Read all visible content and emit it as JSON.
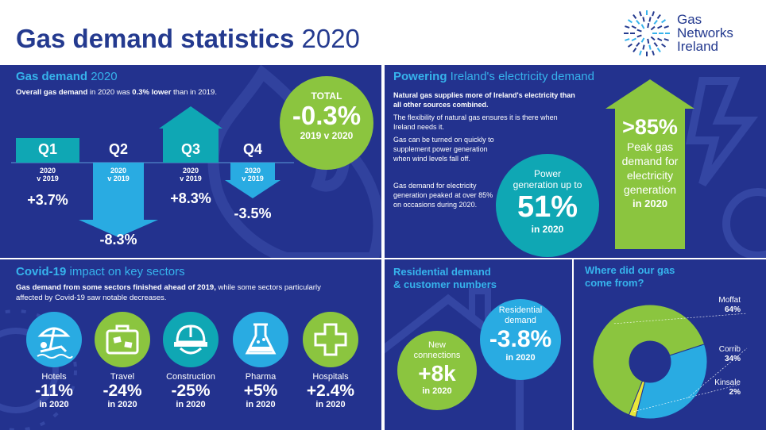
{
  "header": {
    "title_bold": "Gas demand statistics",
    "title_year": "2020",
    "logo": {
      "line1": "Gas",
      "line2": "Networks",
      "line3": "Ireland",
      "icon": "ring-logo-icon"
    }
  },
  "colors": {
    "navy": "#23328e",
    "cyan": "#36b3ec",
    "teal": "#0fa7b4",
    "green": "#8bc53f",
    "light_blue": "#29abe2",
    "yellow": "#e9e63a"
  },
  "demand": {
    "title_bold": "Gas demand",
    "title_year": "2020",
    "lead_a": "Overall gas demand",
    "lead_b": " in 2020 was ",
    "lead_c": "0.3% lower",
    "lead_d": " than in 2019.",
    "total": {
      "label": "TOTAL",
      "value": "-0.3%",
      "sub": "2019 v 2020"
    },
    "quarters": [
      {
        "label": "Q1",
        "sub1": "2020",
        "sub2": "v 2019",
        "value": "+3.7%",
        "direction": "up"
      },
      {
        "label": "Q2",
        "sub1": "2020",
        "sub2": "v 2019",
        "value": "-8.3%",
        "direction": "down"
      },
      {
        "label": "Q3",
        "sub1": "2020",
        "sub2": "v 2019",
        "value": "+8.3%",
        "direction": "up"
      },
      {
        "label": "Q4",
        "sub1": "2020",
        "sub2": "v 2019",
        "value": "-3.5%",
        "direction": "down"
      }
    ]
  },
  "power": {
    "title_bold": "Powering",
    "title_rest": " Ireland's electricity demand",
    "p1": "Natural gas supplies more of Ireland's electricity than all other sources combined.",
    "p2": "The flexibility of natural gas ensures it is there when Ireland needs it.",
    "p3": "Gas can be turned on quickly to supplement power generation when wind levels fall off.",
    "p4": "Gas demand for electricity generation peaked at over 85% on occasions during 2020.",
    "circle": {
      "line1": "Power",
      "line2": "generation up to",
      "value": "51%",
      "year": "in 2020"
    },
    "arrow": {
      "value": ">85%",
      "line1": "Peak gas",
      "line2": "demand for",
      "line3": "electricity",
      "line4": "generation",
      "year": "in 2020"
    }
  },
  "covid": {
    "title_bold": "Covid-19",
    "title_rest": " impact on key sectors",
    "lead_a": "Gas demand from some sectors finished ahead of 2019,",
    "lead_b": " while some sectors particularly",
    "lead_c": "affected by Covid-19 saw notable decreases.",
    "sectors": [
      {
        "name": "Hotels",
        "value": "-11%",
        "year": "in 2020",
        "icon": "hotel-beach-icon"
      },
      {
        "name": "Travel",
        "value": "-24%",
        "year": "in 2020",
        "icon": "suitcase-icon"
      },
      {
        "name": "Construction",
        "value": "-25%",
        "year": "in 2020",
        "icon": "hard-hat-icon"
      },
      {
        "name": "Pharma",
        "value": "+5%",
        "year": "in 2020",
        "icon": "flask-icon"
      },
      {
        "name": "Hospitals",
        "value": "+2.4%",
        "year": "in 2020",
        "icon": "medical-cross-icon"
      }
    ]
  },
  "residential": {
    "title_l1": "Residential demand",
    "title_l2": "& customer numbers",
    "res_circle": {
      "line1": "Residential",
      "line2": "demand",
      "value": "-3.8%",
      "year": "in 2020"
    },
    "new_circle": {
      "line1": "New",
      "line2": "connections",
      "value": "+8k",
      "year": "in 2020"
    }
  },
  "source": {
    "title_l1": "Where did our gas",
    "title_l2": "come from?"
  },
  "chart_data": {
    "type": "pie",
    "title": "Where did our gas come from?",
    "categories": [
      "Moffat",
      "Corrib",
      "Kinsale"
    ],
    "values": [
      64,
      34,
      2
    ],
    "unit": "%",
    "colors": [
      "#8bc53f",
      "#29abe2",
      "#e9e63a"
    ]
  }
}
